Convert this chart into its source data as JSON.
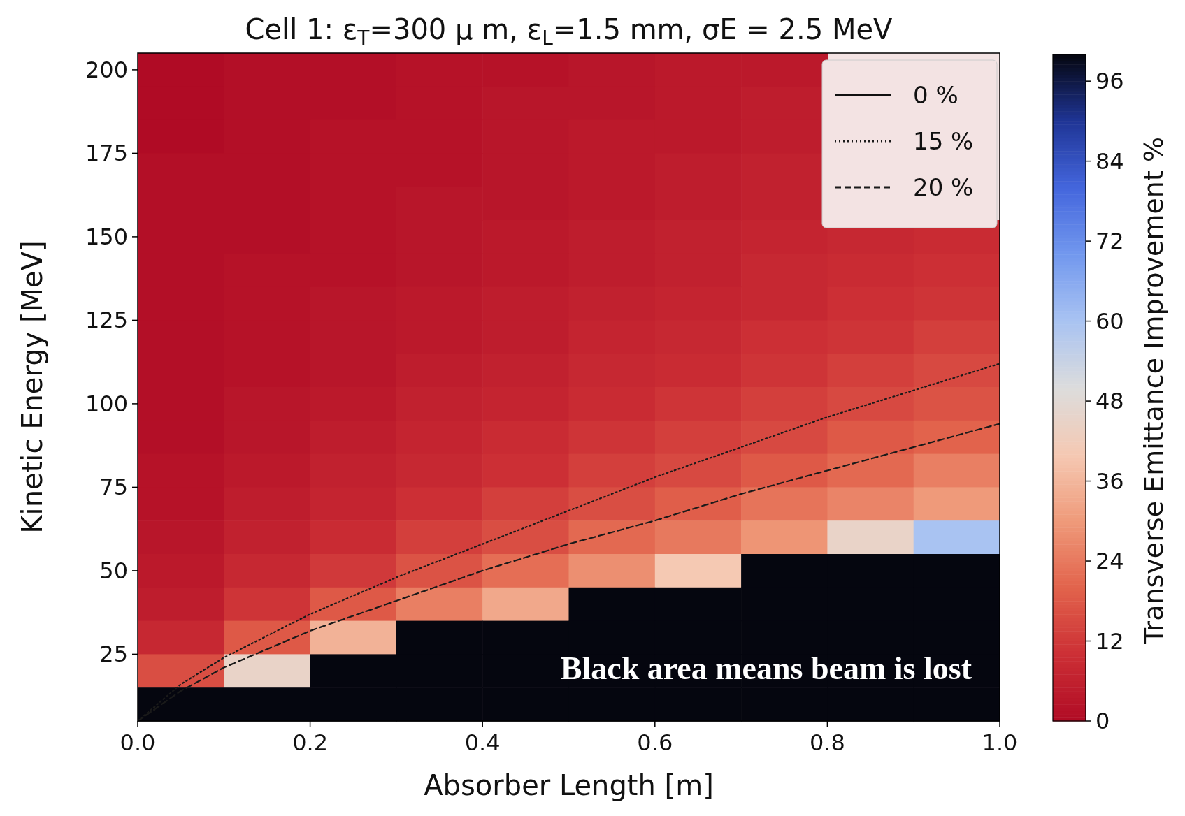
{
  "chart_data": [
    {
      "type": "line",
      "title": "Cell 1: ε$_{T}$=300 μ m, ε$_{L}$=1.5 mm, σE = 2.5 MeV",
      "xlabel": "Absorber Length [m]",
      "ylabel": "Kinetic Energy [MeV]",
      "xlim": [
        0,
        1
      ],
      "xticks": [
        {
          "value": 0,
          "label": "0.0"
        },
        {
          "value": 0.2,
          "label": "0.2"
        },
        {
          "value": 0.4,
          "label": "0.4"
        },
        {
          "value": 0.6,
          "label": "0.6"
        },
        {
          "value": 0.8,
          "label": "0.8"
        },
        {
          "value": 1,
          "label": "1.0"
        }
      ],
      "ylim": [
        5,
        205
      ],
      "yticks": [
        25,
        50,
        75,
        100,
        125,
        150,
        175,
        200
      ],
      "legend": "top right",
      "grid": false,
      "series": [
        {
          "name": "0 %",
          "color": "#111111",
          "line_style": "solid"
        },
        {
          "name": "15 %",
          "color": "#1a1a1a",
          "line_style": "dotted",
          "x": [
            0,
            0.05,
            0.1,
            0.2,
            0.3,
            0.4,
            0.5,
            0.6,
            0.7,
            0.8,
            0.9,
            1.0
          ],
          "values": [
            5,
            16,
            24,
            37,
            48,
            58,
            68,
            78,
            87,
            96,
            104,
            112
          ]
        },
        {
          "name": "20 %",
          "color": "#1a1a1a",
          "line_style": "dashed",
          "x": [
            0,
            0.05,
            0.1,
            0.2,
            0.3,
            0.4,
            0.5,
            0.6,
            0.7,
            0.8,
            0.9,
            1.0
          ],
          "values": [
            5,
            14,
            21,
            32,
            41,
            50,
            58,
            65,
            73,
            80,
            87,
            94
          ]
        }
      ],
      "annotations": [
        "Black area means beam is lost"
      ]
    },
    {
      "type": "heatmap",
      "clabel": "Transverse Emittance Improvement %",
      "clim": [
        0,
        100
      ],
      "cticks": [
        0,
        12,
        24,
        36,
        48,
        60,
        72,
        84,
        96
      ],
      "categories": [
        null,
        null,
        null,
        null,
        null,
        null,
        null,
        null,
        null,
        null
      ],
      "y_categories": [
        null,
        null,
        null,
        null,
        null,
        null,
        null,
        null,
        null,
        null,
        null,
        null,
        null,
        null,
        null,
        null,
        null,
        null,
        null,
        null
      ],
      "cells": [
        [
          0,
          1,
          1,
          2,
          2,
          3,
          4,
          4,
          null,
          null
        ],
        [
          0,
          1,
          1,
          2,
          3,
          3,
          4,
          5,
          null,
          null
        ],
        [
          0,
          1,
          2,
          2,
          3,
          4,
          4,
          5,
          null,
          null
        ],
        [
          1,
          1,
          2,
          2,
          3,
          4,
          5,
          6,
          null,
          null
        ],
        [
          1,
          1,
          2,
          3,
          3,
          4,
          5,
          6,
          null,
          null
        ],
        [
          1,
          1,
          2,
          3,
          4,
          5,
          6,
          7,
          8,
          9
        ],
        [
          1,
          2,
          2,
          3,
          4,
          5,
          6,
          8,
          9,
          10
        ],
        [
          1,
          2,
          3,
          4,
          5,
          6,
          7,
          8,
          10,
          11
        ],
        [
          1,
          2,
          3,
          4,
          5,
          7,
          8,
          10,
          11,
          13
        ],
        [
          1,
          2,
          3,
          5,
          6,
          8,
          9,
          11,
          13,
          15
        ],
        [
          1,
          3,
          4,
          6,
          7,
          9,
          11,
          13,
          15,
          17
        ],
        [
          1,
          3,
          5,
          7,
          9,
          11,
          13,
          15,
          18,
          20
        ],
        [
          2,
          4,
          6,
          8,
          10,
          13,
          15,
          18,
          21,
          25
        ],
        [
          2,
          5,
          7,
          10,
          13,
          16,
          19,
          23,
          26,
          30
        ],
        [
          3,
          6,
          9,
          13,
          16,
          21,
          24,
          29,
          45,
          60
        ],
        [
          4,
          8,
          12,
          17,
          22,
          28,
          40,
          100,
          100,
          100
        ],
        [
          5,
          11,
          18,
          25,
          33,
          100,
          100,
          100,
          100,
          100
        ],
        [
          8,
          18,
          35,
          100,
          100,
          100,
          100,
          100,
          100,
          100
        ],
        [
          16,
          45,
          100,
          100,
          100,
          100,
          100,
          100,
          100,
          100
        ],
        [
          100,
          100,
          100,
          100,
          100,
          100,
          100,
          100,
          100,
          100
        ]
      ]
    }
  ]
}
